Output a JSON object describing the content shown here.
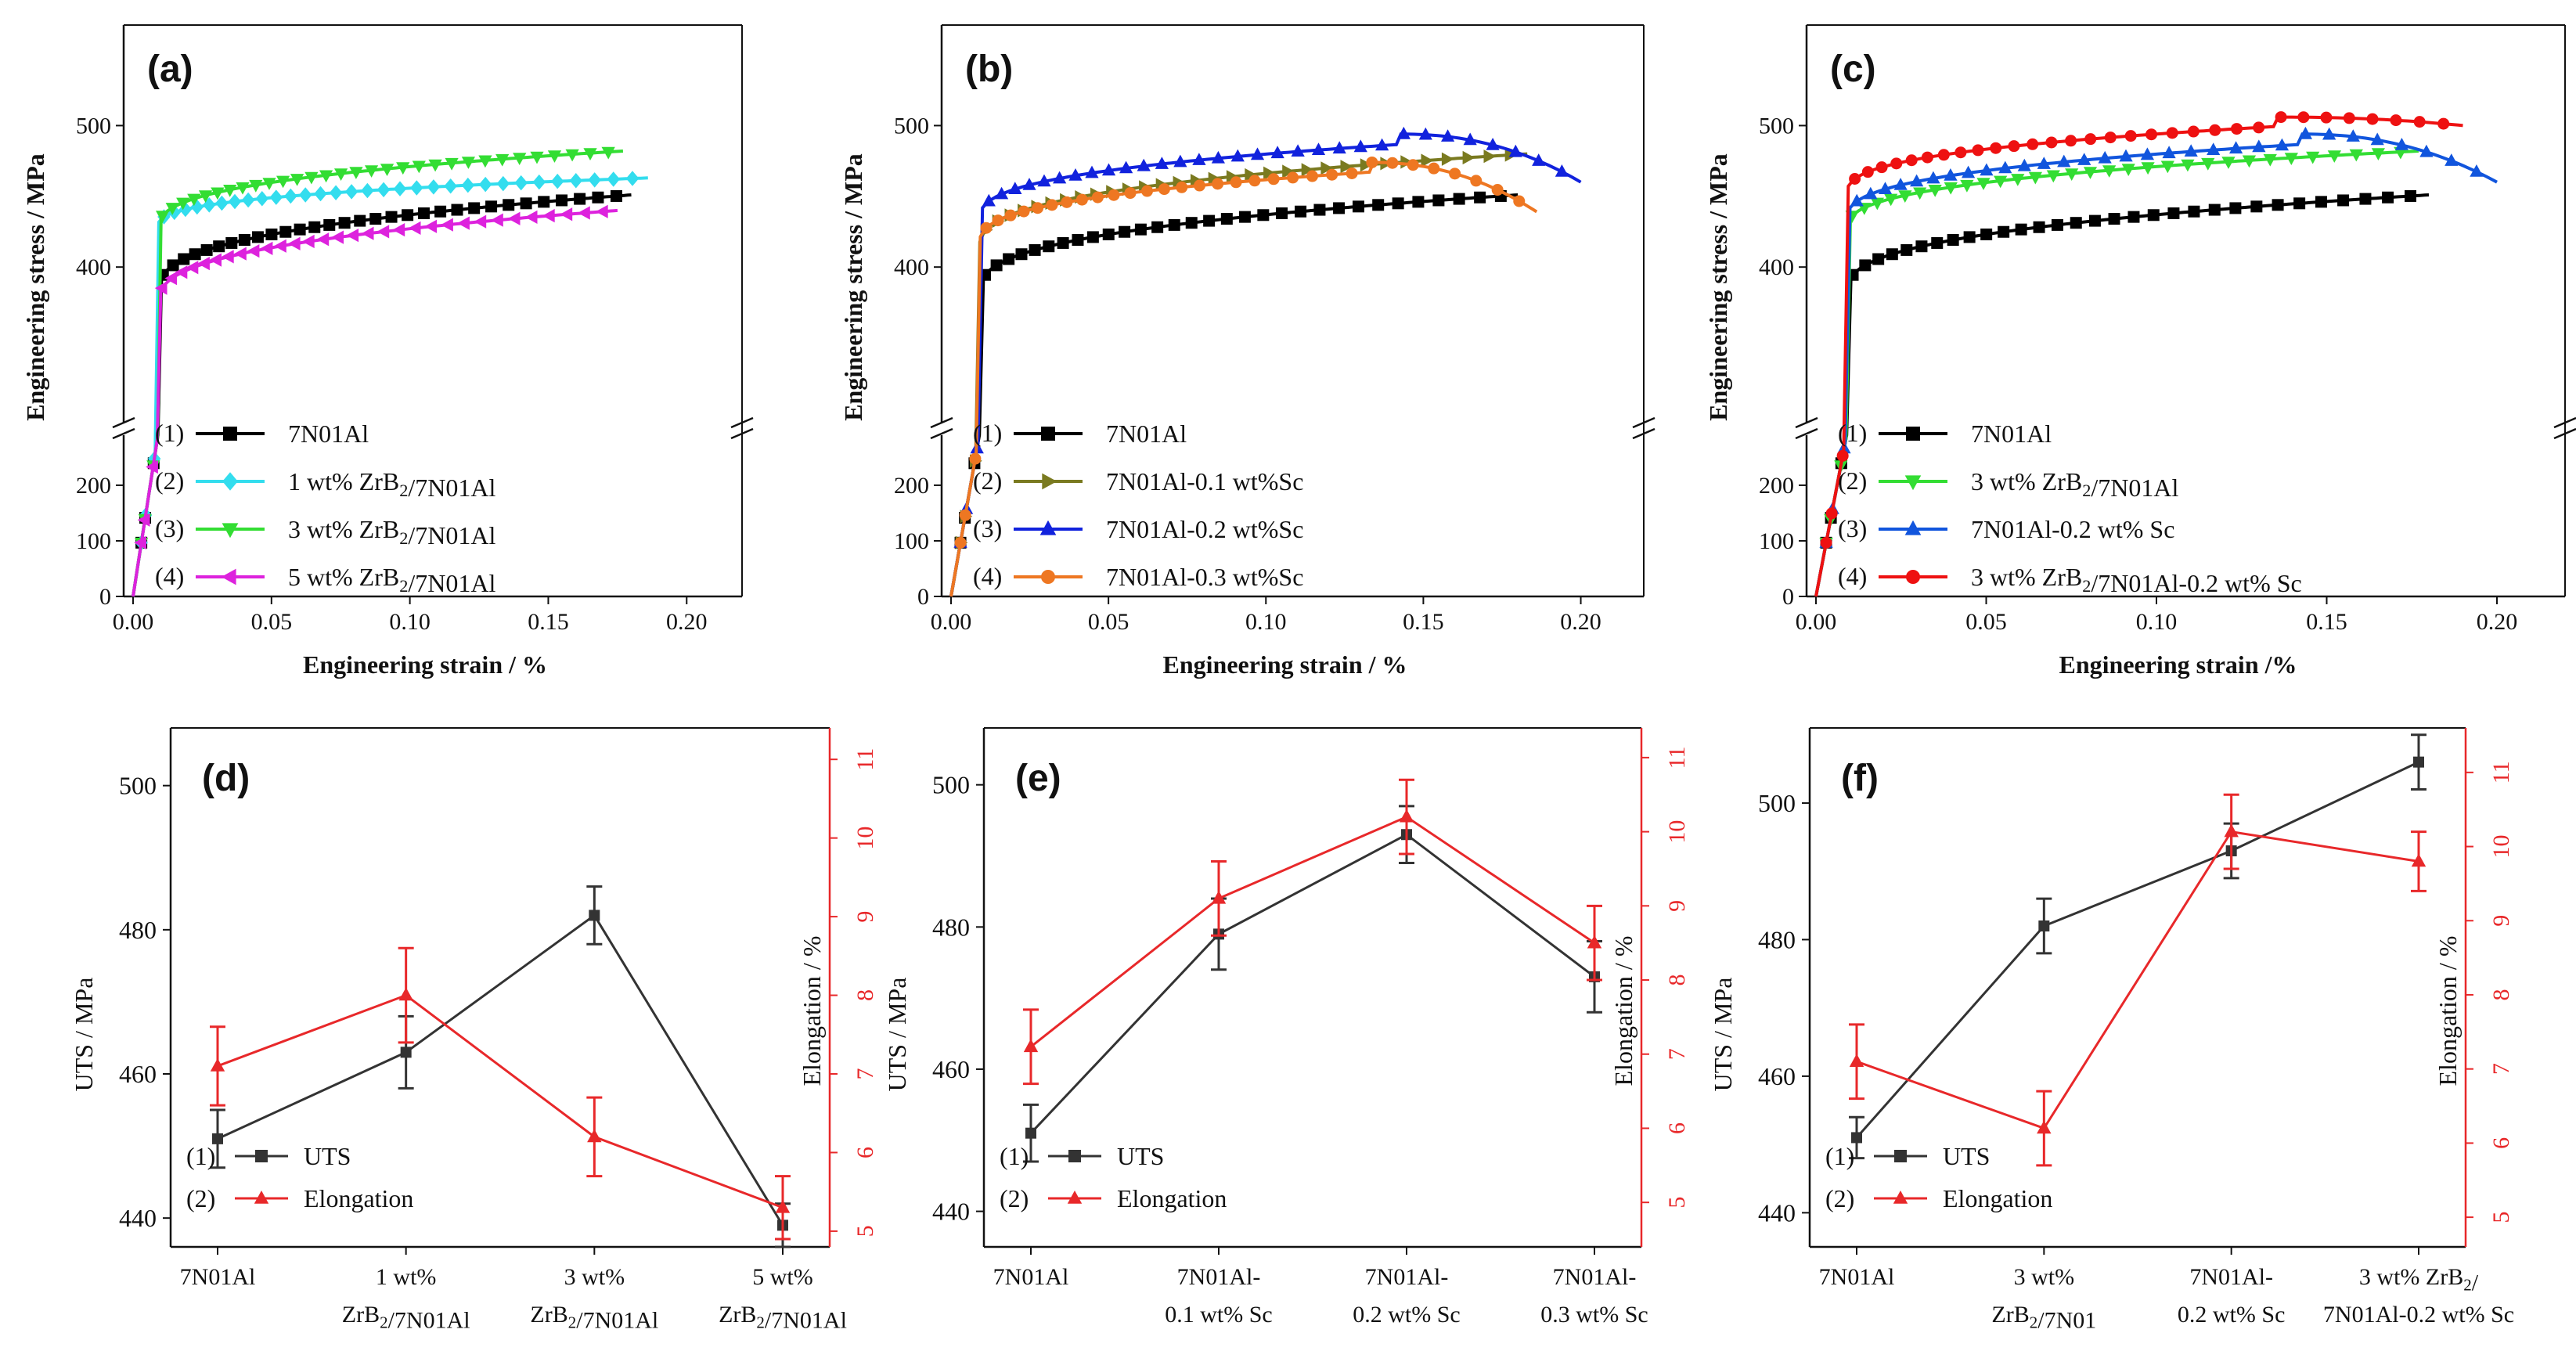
{
  "figure": {
    "panels": [
      {
        "id": "a",
        "label": "(a)",
        "type": "line",
        "xlabel": "Engineering strain / %",
        "ylabel": "Engineering stress / MPa",
        "xlim": [
          0,
          0.22
        ],
        "xticks": [
          "0.00",
          "0.05",
          "0.10",
          "0.15",
          "0.20"
        ],
        "yticks_low": [
          "0",
          "100",
          "200"
        ],
        "yticks_high": [
          "400",
          "500"
        ],
        "legend": [
          {
            "num": "(1)",
            "text": "7N01Al",
            "color": "#000000",
            "marker": "square"
          },
          {
            "num": "(2)",
            "text": "1 wt% ZrB2/7N01Al",
            "color": "#33ddee",
            "marker": "diamond"
          },
          {
            "num": "(3)",
            "text": "3 wt% ZrB2/7N01Al",
            "color": "#33dd33",
            "marker": "triangle-down"
          },
          {
            "num": "(4)",
            "text": "5 wt% ZrB2/7N01Al",
            "color": "#dd22dd",
            "marker": "triangle-left"
          }
        ],
        "series": [
          {
            "name": "7N01Al",
            "yield": 380,
            "uts": 451,
            "fracture_strain": 0.18,
            "drop": 0
          },
          {
            "name": "1 wt% ZrB2/7N01Al",
            "yield": 428,
            "uts": 463,
            "fracture_strain": 0.186,
            "drop": 0
          },
          {
            "name": "3 wt% ZrB2/7N01Al",
            "yield": 425,
            "uts": 482,
            "fracture_strain": 0.177,
            "drop": 0
          },
          {
            "name": "5 wt% ZrB2/7N01Al",
            "yield": 372,
            "uts": 440,
            "fracture_strain": 0.175,
            "drop": 0
          }
        ]
      },
      {
        "id": "b",
        "label": "(b)",
        "type": "line",
        "xlabel": "Engineering strain / %",
        "ylabel": "Engineering stress / MPa",
        "xlim": [
          0,
          0.22
        ],
        "xticks": [
          "0.00",
          "0.05",
          "0.10",
          "0.15",
          "0.20"
        ],
        "yticks_low": [
          "0",
          "100",
          "200"
        ],
        "yticks_high": [
          "400",
          "500"
        ],
        "legend": [
          {
            "num": "(1)",
            "text": "7N01Al",
            "color": "#000000",
            "marker": "square"
          },
          {
            "num": "(2)",
            "text": "7N01Al-0.1 wt%Sc",
            "color": "#7a7a20",
            "marker": "triangle-right"
          },
          {
            "num": "(3)",
            "text": "7N01Al-0.2 wt%Sc",
            "color": "#1122dd",
            "marker": "triangle-up"
          },
          {
            "num": "(4)",
            "text": "7N01Al-0.3 wt%Sc",
            "color": "#ee7722",
            "marker": "circle"
          }
        ],
        "series": [
          {
            "name": "7N01Al",
            "yield": 380,
            "uts": 451,
            "fracture_strain": 0.18,
            "drop": 0
          },
          {
            "name": "7N01Al-0.1 wt%Sc",
            "yield": 412,
            "uts": 480,
            "fracture_strain": 0.183,
            "drop": 0
          },
          {
            "name": "7N01Al-0.2 wt%Sc",
            "yield": 432,
            "uts": 494,
            "fracture_strain": 0.2,
            "drop": 34
          },
          {
            "name": "7N01Al-0.3 wt%Sc",
            "yield": 415,
            "uts": 474,
            "fracture_strain": 0.186,
            "drop": 35
          }
        ]
      },
      {
        "id": "c",
        "label": "(c)",
        "type": "line",
        "xlabel": "Engineering strain /%",
        "ylabel": "Engineering stress / MPa",
        "xlim": [
          0,
          0.22
        ],
        "xticks": [
          "0.00",
          "0.05",
          "0.10",
          "0.15",
          "0.20"
        ],
        "yticks_low": [
          "0",
          "100",
          "200"
        ],
        "yticks_high": [
          "400",
          "500"
        ],
        "legend": [
          {
            "num": "(1)",
            "text": "7N01Al",
            "color": "#000000",
            "marker": "square"
          },
          {
            "num": "(2)",
            "text": "3 wt% ZrB2/7N01Al",
            "color": "#33dd33",
            "marker": "triangle-down"
          },
          {
            "num": "(3)",
            "text": "7N01Al-0.2 wt% Sc",
            "color": "#1155dd",
            "marker": "triangle-up"
          },
          {
            "num": "(4)",
            "text": "3 wt% ZrB2/7N01Al-0.2 wt% Sc",
            "color": "#ee1111",
            "marker": "circle"
          }
        ],
        "series": [
          {
            "name": "7N01Al",
            "yield": 380,
            "uts": 451,
            "fracture_strain": 0.18,
            "drop": 0
          },
          {
            "name": "3 wt% ZrB2/7N01Al",
            "yield": 425,
            "uts": 482,
            "fracture_strain": 0.177,
            "drop": 0
          },
          {
            "name": "7N01Al-0.2 wt% Sc",
            "yield": 432,
            "uts": 494,
            "fracture_strain": 0.2,
            "drop": 34
          },
          {
            "name": "3 wt% ZrB2/7N01Al-0.2 wt% Sc",
            "yield": 450,
            "uts": 506,
            "fracture_strain": 0.19,
            "drop": 6
          }
        ]
      },
      {
        "id": "d",
        "label": "(d)",
        "type": "line",
        "ylabel": "UTS / MPa",
        "y2label": "Elongation / %",
        "ylim": [
          436,
          508
        ],
        "y2lim": [
          4.8,
          11.4
        ],
        "yticks": [
          "440",
          "460",
          "480",
          "500"
        ],
        "y2ticks": [
          "5",
          "6",
          "7",
          "8",
          "9",
          "10",
          "11"
        ],
        "categories": [
          [
            "7N01Al"
          ],
          [
            "1 wt%",
            "ZrB2/7N01Al"
          ],
          [
            "3 wt%",
            "ZrB2/7N01Al"
          ],
          [
            "5 wt%",
            "ZrB2/7N01Al"
          ]
        ],
        "uts": [
          451,
          463,
          482,
          439
        ],
        "uts_err": [
          4,
          5,
          4,
          3
        ],
        "elongation": [
          7.1,
          8.0,
          6.2,
          5.3
        ],
        "elongation_err": [
          0.5,
          0.6,
          0.5,
          0.4
        ],
        "legend": [
          {
            "num": "(1)",
            "text": "UTS"
          },
          {
            "num": "(2)",
            "text": "Elongation"
          }
        ]
      },
      {
        "id": "e",
        "label": "(e)",
        "type": "line",
        "ylabel": "UTS / MPa",
        "y2label": "Elongation / %",
        "ylim": [
          435,
          508
        ],
        "y2lim": [
          4.4,
          11.4
        ],
        "yticks": [
          "440",
          "460",
          "480",
          "500"
        ],
        "y2ticks": [
          "5",
          "6",
          "7",
          "8",
          "9",
          "10",
          "11"
        ],
        "categories": [
          [
            "7N01Al"
          ],
          [
            "7N01Al-",
            "0.1 wt% Sc"
          ],
          [
            "7N01Al-",
            "0.2 wt% Sc"
          ],
          [
            "7N01Al-",
            "0.3 wt% Sc"
          ]
        ],
        "uts": [
          451,
          479,
          493,
          473
        ],
        "uts_err": [
          4,
          5,
          4,
          5
        ],
        "elongation": [
          7.1,
          9.1,
          10.2,
          8.5
        ],
        "elongation_err": [
          0.5,
          0.5,
          0.5,
          0.5
        ],
        "legend": [
          {
            "num": "(1)",
            "text": "UTS"
          },
          {
            "num": "(2)",
            "text": "Elongation"
          }
        ]
      },
      {
        "id": "f",
        "label": "(f)",
        "type": "line",
        "ylabel": "UTS / MPa",
        "y2label": "Elongation / %",
        "ylim": [
          435,
          511
        ],
        "y2lim": [
          4.6,
          11.6
        ],
        "yticks": [
          "440",
          "460",
          "480",
          "500"
        ],
        "y2ticks": [
          "5",
          "6",
          "7",
          "8",
          "9",
          "10",
          "11"
        ],
        "categories": [
          [
            "7N01Al"
          ],
          [
            "3 wt%",
            "ZrB2/7N01"
          ],
          [
            "7N01Al-",
            "0.2 wt% Sc"
          ],
          [
            "3 wt% ZrB2/",
            "7N01Al-0.2 wt% Sc"
          ]
        ],
        "uts": [
          451,
          482,
          493,
          506
        ],
        "uts_err": [
          3,
          4,
          4,
          4
        ],
        "elongation": [
          7.1,
          6.2,
          10.2,
          9.8
        ],
        "elongation_err": [
          0.5,
          0.5,
          0.5,
          0.4
        ],
        "legend": [
          {
            "num": "(1)",
            "text": "UTS"
          },
          {
            "num": "(2)",
            "text": "Elongation"
          }
        ]
      }
    ],
    "colors": {
      "uts": "#333333",
      "elongation": "#e8282a",
      "axis": "#111111"
    }
  },
  "chart_data": [
    {
      "type": "line",
      "title": "(a)",
      "xlabel": "Engineering strain / %",
      "ylabel": "Engineering stress / MPa",
      "xlim": [
        0,
        0.22
      ],
      "series": [
        {
          "name": "7N01Al",
          "uts": 451,
          "fracture_strain": 0.18
        },
        {
          "name": "1 wt% ZrB2/7N01Al",
          "uts": 463,
          "fracture_strain": 0.186
        },
        {
          "name": "3 wt% ZrB2/7N01Al",
          "uts": 482,
          "fracture_strain": 0.177
        },
        {
          "name": "5 wt% ZrB2/7N01Al",
          "uts": 440,
          "fracture_strain": 0.175
        }
      ]
    },
    {
      "type": "line",
      "title": "(b)",
      "xlabel": "Engineering strain / %",
      "ylabel": "Engineering stress / MPa",
      "xlim": [
        0,
        0.22
      ],
      "series": [
        {
          "name": "7N01Al",
          "uts": 451,
          "fracture_strain": 0.18
        },
        {
          "name": "7N01Al-0.1 wt%Sc",
          "uts": 480,
          "fracture_strain": 0.183
        },
        {
          "name": "7N01Al-0.2 wt%Sc",
          "uts": 494,
          "fracture_strain": 0.2
        },
        {
          "name": "7N01Al-0.3 wt%Sc",
          "uts": 474,
          "fracture_strain": 0.186
        }
      ]
    },
    {
      "type": "line",
      "title": "(c)",
      "xlabel": "Engineering strain /%",
      "ylabel": "Engineering stress / MPa",
      "xlim": [
        0,
        0.22
      ],
      "series": [
        {
          "name": "7N01Al",
          "uts": 451,
          "fracture_strain": 0.18
        },
        {
          "name": "3 wt% ZrB2/7N01Al",
          "uts": 482,
          "fracture_strain": 0.177
        },
        {
          "name": "7N01Al-0.2 wt% Sc",
          "uts": 494,
          "fracture_strain": 0.2
        },
        {
          "name": "3 wt% ZrB2/7N01Al-0.2 wt% Sc",
          "uts": 506,
          "fracture_strain": 0.19
        }
      ]
    },
    {
      "type": "line",
      "title": "(d)",
      "categories": [
        "7N01Al",
        "1 wt% ZrB2/7N01Al",
        "3 wt% ZrB2/7N01Al",
        "5 wt% ZrB2/7N01Al"
      ],
      "series": [
        {
          "name": "UTS",
          "values": [
            451,
            463,
            482,
            439
          ]
        },
        {
          "name": "Elongation",
          "values": [
            7.1,
            8.0,
            6.2,
            5.3
          ]
        }
      ]
    },
    {
      "type": "line",
      "title": "(e)",
      "categories": [
        "7N01Al",
        "7N01Al-0.1 wt% Sc",
        "7N01Al-0.2 wt% Sc",
        "7N01Al-0.3 wt% Sc"
      ],
      "series": [
        {
          "name": "UTS",
          "values": [
            451,
            479,
            493,
            473
          ]
        },
        {
          "name": "Elongation",
          "values": [
            7.1,
            9.1,
            10.2,
            8.5
          ]
        }
      ]
    },
    {
      "type": "line",
      "title": "(f)",
      "categories": [
        "7N01Al",
        "3 wt% ZrB2/7N01",
        "7N01Al-0.2 wt% Sc",
        "3 wt% ZrB2/7N01Al-0.2 wt% Sc"
      ],
      "series": [
        {
          "name": "UTS",
          "values": [
            451,
            482,
            493,
            506
          ]
        },
        {
          "name": "Elongation",
          "values": [
            7.1,
            6.2,
            10.2,
            9.8
          ]
        }
      ]
    }
  ]
}
